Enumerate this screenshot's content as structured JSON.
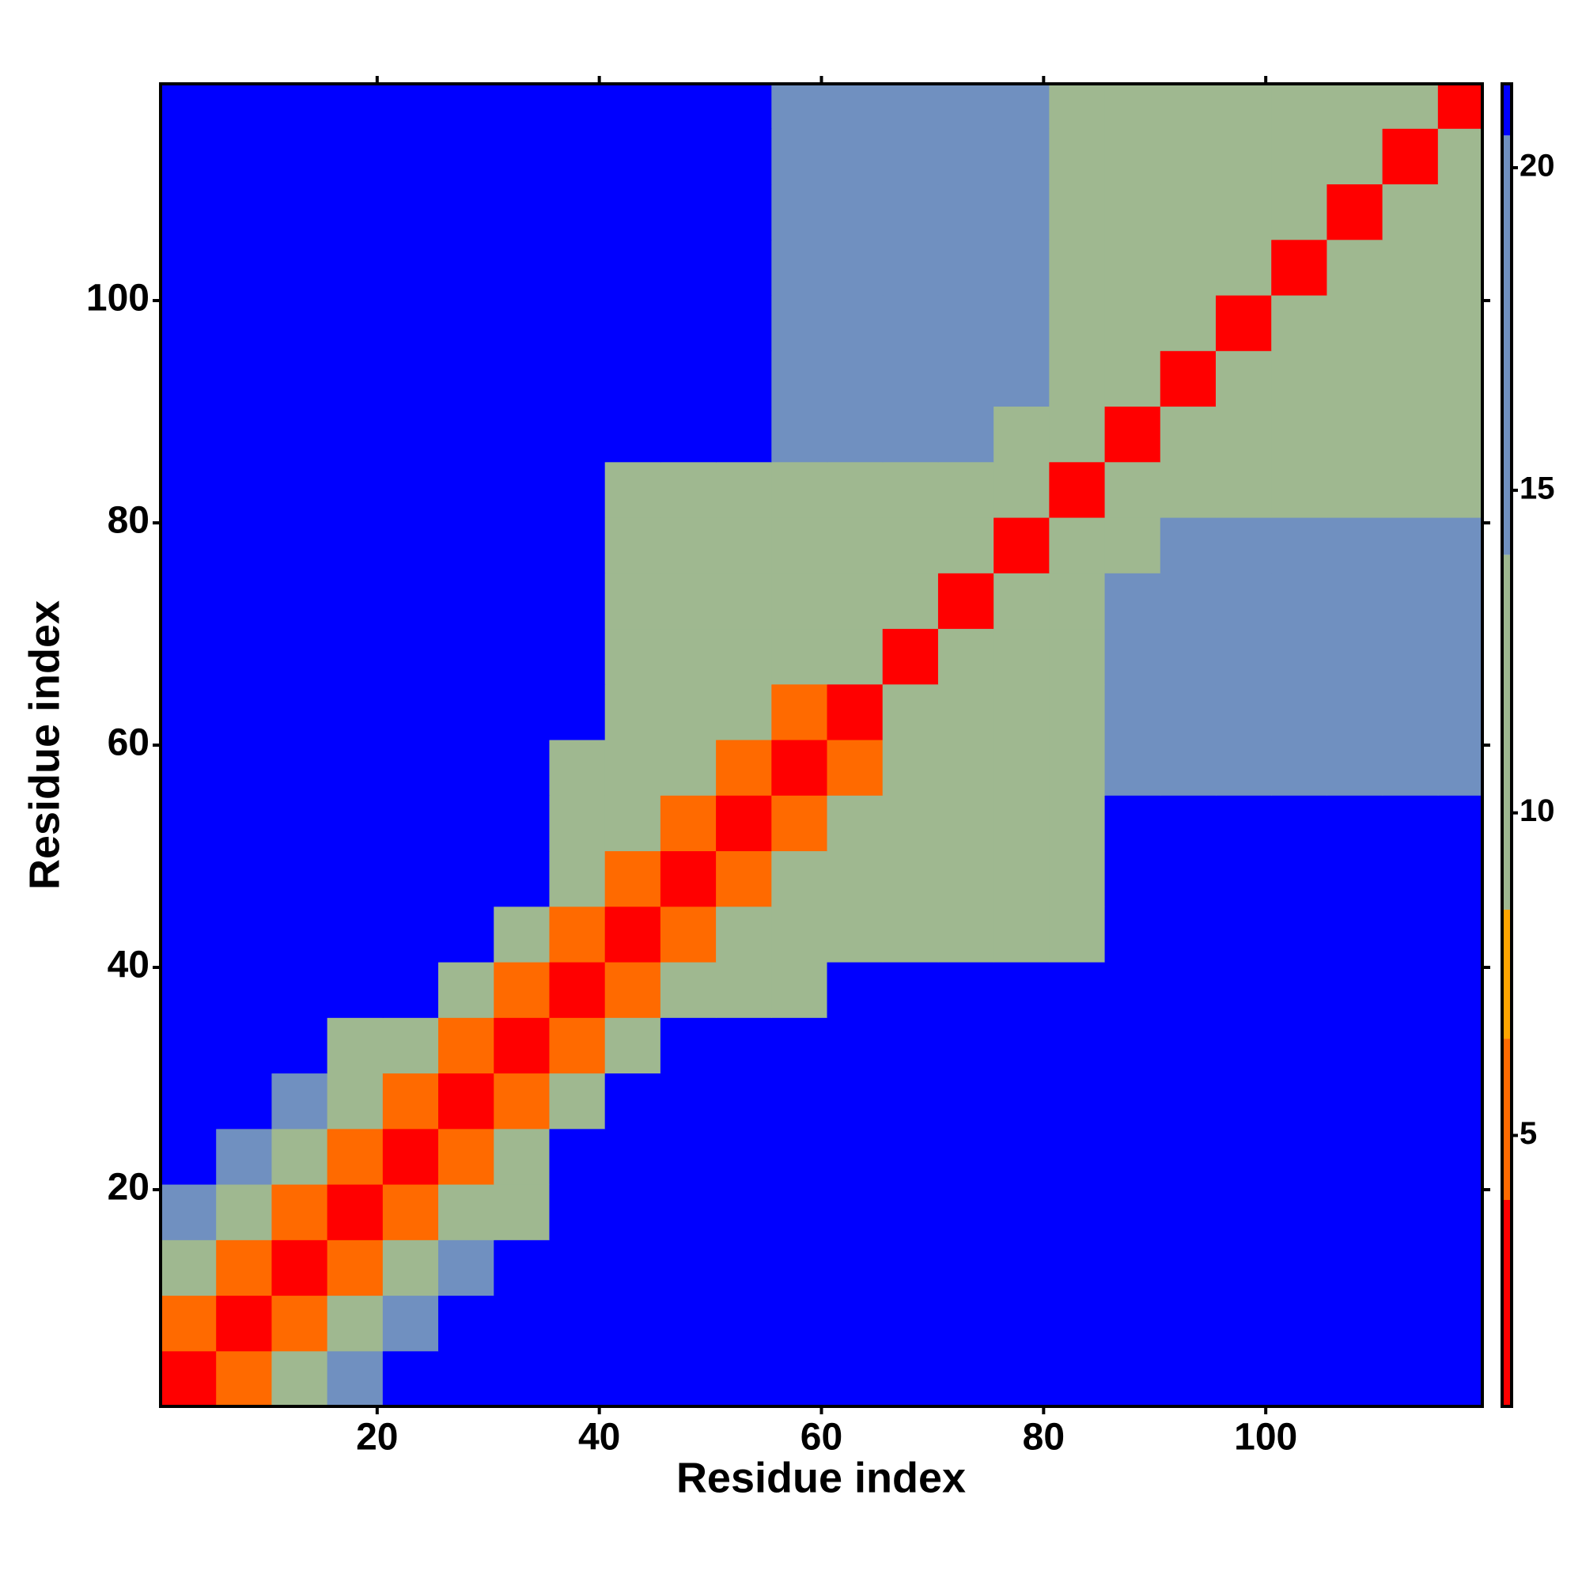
{
  "chart_data": {
    "type": "heatmap",
    "xlabel": "Residue index",
    "ylabel": "Residue index",
    "x": [
      3,
      8,
      13,
      18,
      23,
      28,
      33,
      38,
      43,
      48,
      53,
      58,
      63,
      68,
      73,
      78,
      83,
      88,
      93,
      98,
      103,
      108,
      113,
      118
    ],
    "y": [
      3,
      8,
      13,
      18,
      23,
      28,
      33,
      38,
      43,
      48,
      53,
      58,
      63,
      68,
      73,
      78,
      83,
      88,
      93,
      98,
      103,
      108,
      113,
      118
    ],
    "z": [
      [
        2,
        6,
        11,
        16,
        21,
        21,
        21,
        21,
        21,
        21,
        21,
        21,
        21,
        21,
        21,
        21,
        21,
        21,
        21,
        21,
        21,
        21,
        21,
        21
      ],
      [
        6,
        2,
        6,
        11,
        16,
        21,
        21,
        21,
        21,
        21,
        21,
        21,
        21,
        21,
        21,
        21,
        21,
        21,
        21,
        21,
        21,
        21,
        21,
        21
      ],
      [
        11,
        6,
        2,
        6,
        11,
        16,
        21,
        21,
        21,
        21,
        21,
        21,
        21,
        21,
        21,
        21,
        21,
        21,
        21,
        21,
        21,
        21,
        21,
        21
      ],
      [
        16,
        11,
        6,
        2,
        6,
        11,
        13,
        21,
        21,
        21,
        21,
        21,
        21,
        21,
        21,
        21,
        21,
        21,
        21,
        21,
        21,
        21,
        21,
        21
      ],
      [
        21,
        16,
        11,
        6,
        2,
        6,
        11,
        21,
        21,
        21,
        21,
        21,
        21,
        21,
        21,
        21,
        21,
        21,
        21,
        21,
        21,
        21,
        21,
        21
      ],
      [
        21,
        21,
        16,
        11,
        6,
        2,
        6,
        11,
        21,
        21,
        21,
        21,
        21,
        21,
        21,
        21,
        21,
        21,
        21,
        21,
        21,
        21,
        21,
        21
      ],
      [
        21,
        21,
        21,
        13,
        11,
        6,
        2,
        6,
        11,
        21,
        21,
        21,
        21,
        21,
        21,
        21,
        21,
        21,
        21,
        21,
        21,
        21,
        21,
        21
      ],
      [
        21,
        21,
        21,
        21,
        21,
        11,
        6,
        2,
        6,
        11,
        13,
        13,
        21,
        21,
        21,
        21,
        21,
        21,
        21,
        21,
        21,
        21,
        21,
        21
      ],
      [
        21,
        21,
        21,
        21,
        21,
        21,
        11,
        6,
        2,
        6,
        11,
        13,
        13,
        13,
        13,
        13,
        13,
        21,
        21,
        21,
        21,
        21,
        21,
        21
      ],
      [
        21,
        21,
        21,
        21,
        21,
        21,
        21,
        11,
        6,
        2,
        6,
        11,
        13,
        13,
        13,
        13,
        13,
        21,
        21,
        21,
        21,
        21,
        21,
        21
      ],
      [
        21,
        21,
        21,
        21,
        21,
        21,
        21,
        13,
        11,
        6,
        2,
        6,
        13,
        13,
        13,
        13,
        13,
        21,
        21,
        21,
        21,
        21,
        21,
        21
      ],
      [
        21,
        21,
        21,
        21,
        21,
        21,
        21,
        13,
        13,
        11,
        6,
        2,
        6,
        13,
        13,
        13,
        13,
        15,
        15,
        15,
        15,
        15,
        15,
        15
      ],
      [
        21,
        21,
        21,
        21,
        21,
        21,
        21,
        21,
        13,
        13,
        13,
        6,
        2,
        9,
        13,
        13,
        13,
        15,
        15,
        15,
        15,
        15,
        15,
        15
      ],
      [
        21,
        21,
        21,
        21,
        21,
        21,
        21,
        21,
        13,
        13,
        13,
        13,
        9,
        2,
        9,
        13,
        13,
        15,
        15,
        15,
        15,
        15,
        15,
        15
      ],
      [
        21,
        21,
        21,
        21,
        21,
        21,
        21,
        21,
        13,
        13,
        13,
        13,
        13,
        9,
        2,
        9,
        13,
        15,
        15,
        15,
        15,
        15,
        15,
        15
      ],
      [
        21,
        21,
        21,
        21,
        21,
        21,
        21,
        21,
        13,
        13,
        13,
        13,
        13,
        13,
        9,
        2,
        9,
        13,
        15,
        15,
        15,
        15,
        15,
        15
      ],
      [
        21,
        21,
        21,
        21,
        21,
        21,
        21,
        21,
        13,
        13,
        13,
        13,
        13,
        13,
        13,
        9,
        2,
        9,
        13,
        12,
        12,
        12,
        12,
        12
      ],
      [
        21,
        21,
        21,
        21,
        21,
        21,
        21,
        21,
        21,
        21,
        21,
        15,
        15,
        15,
        15,
        13,
        9,
        2,
        9,
        13,
        12,
        12,
        12,
        12
      ],
      [
        21,
        21,
        21,
        21,
        21,
        21,
        21,
        21,
        21,
        21,
        21,
        15,
        15,
        15,
        15,
        15,
        13,
        9,
        2,
        9,
        13,
        12,
        12,
        12
      ],
      [
        21,
        21,
        21,
        21,
        21,
        21,
        21,
        21,
        21,
        21,
        21,
        15,
        15,
        15,
        15,
        15,
        12,
        13,
        9,
        2,
        9,
        13,
        12,
        12
      ],
      [
        21,
        21,
        21,
        21,
        21,
        21,
        21,
        21,
        21,
        21,
        21,
        15,
        15,
        15,
        15,
        15,
        12,
        12,
        13,
        9,
        2,
        9,
        13,
        12
      ],
      [
        21,
        21,
        21,
        21,
        21,
        21,
        21,
        21,
        21,
        21,
        21,
        15,
        15,
        15,
        15,
        15,
        12,
        12,
        12,
        13,
        9,
        2,
        9,
        13
      ],
      [
        21,
        21,
        21,
        21,
        21,
        21,
        21,
        21,
        21,
        21,
        21,
        15,
        15,
        15,
        15,
        15,
        12,
        12,
        12,
        12,
        13,
        9,
        2,
        9
      ],
      [
        21,
        21,
        21,
        21,
        21,
        21,
        21,
        21,
        21,
        21,
        21,
        15,
        15,
        15,
        15,
        15,
        12,
        12,
        12,
        12,
        12,
        13,
        9,
        2
      ]
    ],
    "xlim": [
      0.5,
      119.5
    ],
    "ylim": [
      0.5,
      119.5
    ],
    "xticks": [
      20,
      40,
      60,
      80,
      100
    ],
    "yticks": [
      20,
      40,
      60,
      80,
      100
    ],
    "clim": [
      0.8,
      21.3
    ],
    "cticks": [
      5,
      10,
      15,
      20
    ],
    "colorscale": [
      {
        "max": 4,
        "color": "#ff0000"
      },
      {
        "max": 6.5,
        "color": "#ff6a00"
      },
      {
        "max": 8.5,
        "color": "#ffa500"
      },
      {
        "max": 14,
        "color": "#9fb890"
      },
      {
        "max": 20.5,
        "color": "#7090c0"
      },
      {
        "max": 21.3,
        "color": "#0000ff"
      }
    ]
  }
}
